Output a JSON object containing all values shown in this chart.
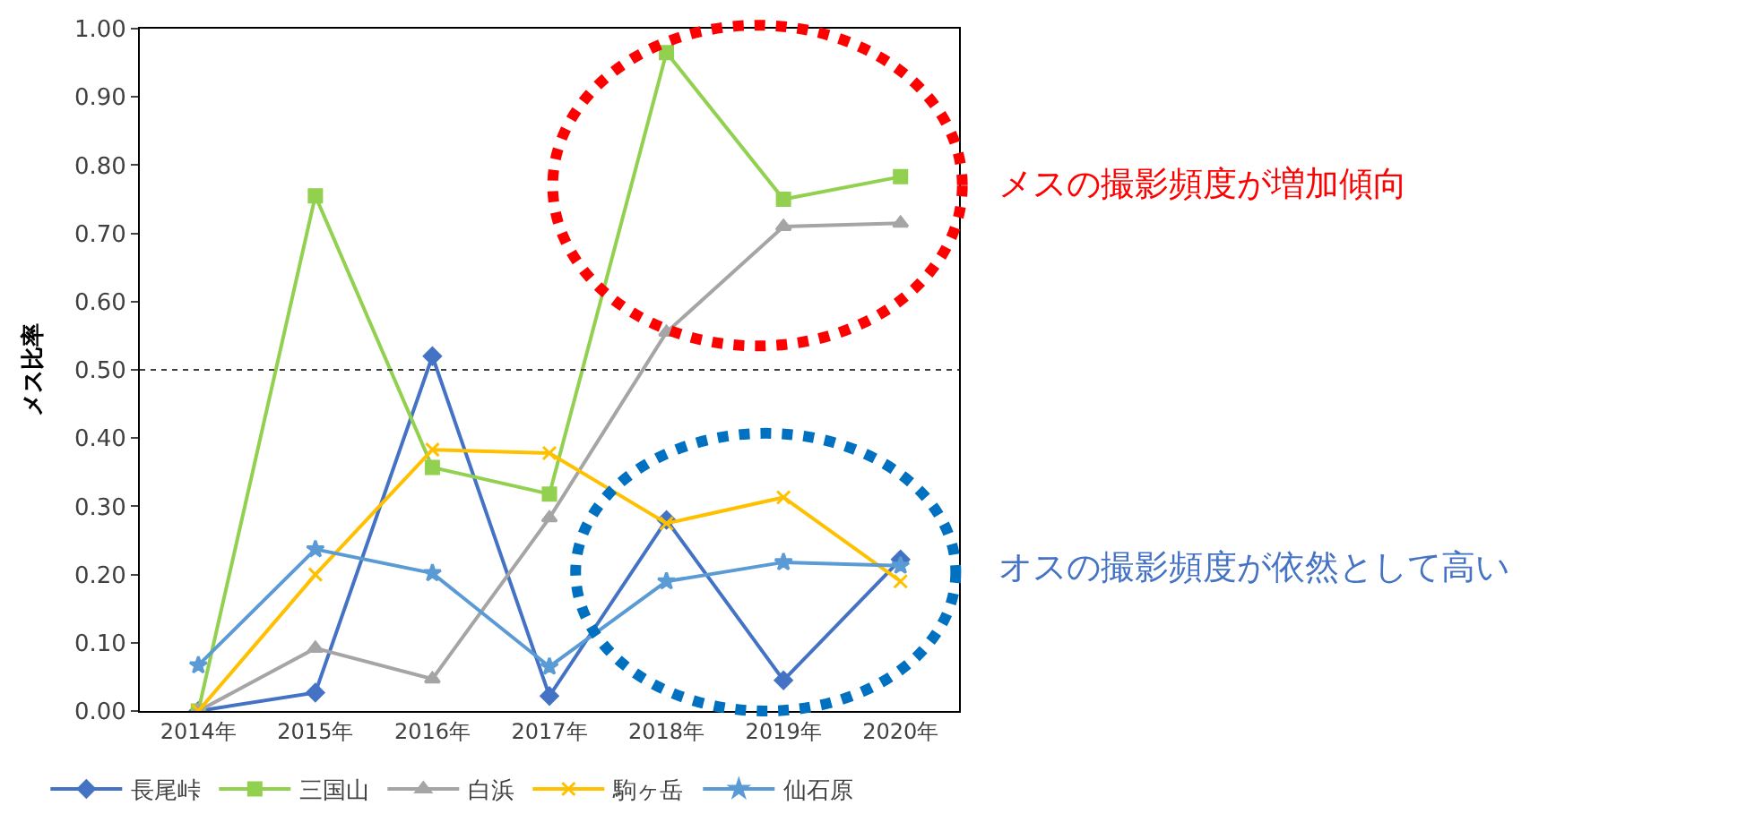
{
  "chart_data": {
    "type": "line",
    "ylabel": "メス比率",
    "categories": [
      "2014年",
      "2015年",
      "2016年",
      "2017年",
      "2018年",
      "2019年",
      "2020年"
    ],
    "series": [
      {
        "name": "長尾峠",
        "color": "#4472c4",
        "marker": "diamond",
        "values": [
          0,
          0.027,
          0.52,
          0.022,
          0.28,
          0.045,
          0.222
        ]
      },
      {
        "name": "三国山",
        "color": "#92d050",
        "marker": "square",
        "values": [
          0,
          0.755,
          0.357,
          0.318,
          0.965,
          0.75,
          0.783
        ]
      },
      {
        "name": "白浜",
        "color": "#a5a5a5",
        "marker": "triangle",
        "values": [
          0,
          0.092,
          0.047,
          0.283,
          0.555,
          0.71,
          0.715
        ]
      },
      {
        "name": "駒ヶ岳",
        "color": "#ffc000",
        "marker": "cross",
        "values": [
          0,
          0.2,
          0.383,
          0.378,
          0.275,
          0.313,
          0.19
        ]
      },
      {
        "name": "仙石原",
        "color": "#5b9bd5",
        "marker": "star",
        "values": [
          0.067,
          0.237,
          0.202,
          0.065,
          0.19,
          0.218,
          0.213
        ]
      }
    ],
    "ylim": [
      0,
      1
    ],
    "yticks": [
      {
        "value": 0,
        "label": "0.00"
      },
      {
        "value": 0.1,
        "label": "0.10"
      },
      {
        "value": 0.2,
        "label": "0.20"
      },
      {
        "value": 0.3,
        "label": "0.30"
      },
      {
        "value": 0.4,
        "label": "0.40"
      },
      {
        "value": 0.5,
        "label": "0.50"
      },
      {
        "value": 0.6,
        "label": "0.60"
      },
      {
        "value": 0.7,
        "label": "0.70"
      },
      {
        "value": 0.8,
        "label": "0.80"
      },
      {
        "value": 0.9,
        "label": "0.90"
      },
      {
        "value": 1,
        "label": "1.00"
      }
    ],
    "ref_lines": [
      {
        "axis": "y",
        "value": 0.5,
        "color": "#404040",
        "line_style": "dotted"
      }
    ],
    "annotations": [
      "メスの撮影頻度が増加傾向",
      "オスの撮影頻度が依然として高い"
    ],
    "legend": "bottom",
    "line_style": "solid"
  }
}
